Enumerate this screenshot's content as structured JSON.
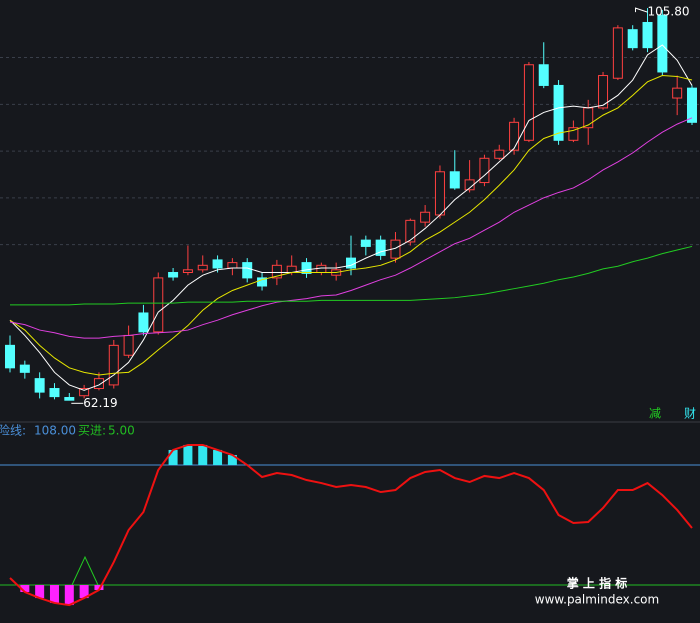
{
  "chart_data": [
    {
      "type": "candlestick",
      "candles": [
        [
          68.3,
          69.4,
          65.3,
          65.8
        ],
        [
          66.1,
          66.6,
          64.6,
          65.3
        ],
        [
          64.6,
          65.3,
          62.4,
          63.1
        ],
        [
          63.5,
          64.1,
          62.3,
          62.6
        ],
        [
          62.5,
          63.0,
          62.19,
          62.2
        ],
        [
          62.7,
          63.9,
          62.4,
          63.5
        ],
        [
          63.5,
          65.3,
          63.3,
          64.6
        ],
        [
          63.9,
          68.9,
          63.5,
          68.3
        ],
        [
          67.2,
          70.5,
          66.9,
          69.4
        ],
        [
          71.9,
          72.8,
          69.4,
          69.8
        ],
        [
          69.8,
          76.4,
          69.5,
          75.8
        ],
        [
          76.4,
          76.9,
          75.5,
          75.9
        ],
        [
          76.4,
          79.4,
          76.1,
          76.7
        ],
        [
          76.7,
          78.3,
          76.4,
          77.2
        ],
        [
          77.8,
          78.3,
          76.4,
          76.9
        ],
        [
          76.9,
          78.0,
          76.1,
          77.5
        ],
        [
          77.5,
          78.0,
          75.3,
          75.8
        ],
        [
          75.8,
          76.4,
          74.4,
          74.9
        ],
        [
          75.8,
          77.8,
          75.0,
          77.2
        ],
        [
          76.4,
          78.3,
          76.1,
          77.1
        ],
        [
          77.5,
          78.0,
          75.8,
          76.3
        ],
        [
          76.4,
          77.5,
          76.1,
          77.2
        ],
        [
          76.1,
          77.5,
          75.5,
          76.7
        ],
        [
          78.0,
          80.5,
          76.1,
          76.9
        ],
        [
          80.0,
          80.5,
          78.3,
          79.3
        ],
        [
          80.0,
          80.5,
          77.8,
          78.3
        ],
        [
          78.0,
          80.9,
          77.5,
          80.0
        ],
        [
          79.8,
          82.4,
          79.4,
          82.2
        ],
        [
          82.0,
          83.9,
          81.5,
          83.1
        ],
        [
          82.8,
          88.3,
          82.4,
          87.6
        ],
        [
          87.6,
          90.0,
          85.6,
          85.8
        ],
        [
          85.6,
          88.9,
          85.3,
          86.7
        ],
        [
          86.4,
          89.5,
          86.0,
          89.1
        ],
        [
          89.1,
          90.6,
          88.9,
          90.0
        ],
        [
          90.0,
          93.6,
          89.5,
          93.1
        ],
        [
          91.1,
          99.8,
          90.9,
          99.5
        ],
        [
          99.5,
          102.0,
          96.9,
          97.2
        ],
        [
          97.2,
          97.8,
          90.6,
          91.1
        ],
        [
          91.1,
          93.3,
          90.9,
          92.5
        ],
        [
          92.5,
          95.6,
          90.6,
          94.7
        ],
        [
          94.7,
          98.7,
          94.5,
          98.3
        ],
        [
          98.0,
          103.9,
          97.8,
          103.6
        ],
        [
          103.4,
          103.9,
          101.1,
          101.4
        ],
        [
          104.2,
          105.8,
          100.9,
          101.4
        ],
        [
          105.0,
          105.6,
          98.3,
          98.7
        ],
        [
          95.8,
          98.3,
          93.9,
          96.9
        ],
        [
          96.9,
          97.2,
          92.8,
          93.1
        ]
      ],
      "up_color": "#ff4040",
      "down_color": "#54ffff",
      "series": [
        {
          "color": "#ffffff",
          "values": [
            71.1,
            69.4,
            67.5,
            65.3,
            63.9,
            63.3,
            63.9,
            65.0,
            66.4,
            68.9,
            72.0,
            73.3,
            75.0,
            76.1,
            76.7,
            76.9,
            76.9,
            76.4,
            76.4,
            76.4,
            76.7,
            76.9,
            76.9,
            77.2,
            78.0,
            78.7,
            79.1,
            80.0,
            81.3,
            82.8,
            84.5,
            85.8,
            87.2,
            88.7,
            90.2,
            93.3,
            94.2,
            94.7,
            94.9,
            94.7,
            95.0,
            96.1,
            97.8,
            100.6,
            101.7,
            100.0,
            97.2
          ]
        },
        {
          "color": "#e6e600",
          "values": [
            71.1,
            70.0,
            68.3,
            66.9,
            65.8,
            65.3,
            65.0,
            65.2,
            65.3,
            66.4,
            67.8,
            69.1,
            70.5,
            72.2,
            73.5,
            74.4,
            75.0,
            75.6,
            76.0,
            76.4,
            76.4,
            76.4,
            76.4,
            76.7,
            76.9,
            77.2,
            77.8,
            78.7,
            80.0,
            80.9,
            82.0,
            83.1,
            84.5,
            86.1,
            87.8,
            90.0,
            91.3,
            91.9,
            92.2,
            92.8,
            93.9,
            94.7,
            96.1,
            97.6,
            98.3,
            98.2,
            97.8
          ]
        },
        {
          "color": "#e040e0",
          "values": [
            70.9,
            70.6,
            70.0,
            69.7,
            69.3,
            69.1,
            69.1,
            69.3,
            69.4,
            69.6,
            69.7,
            69.8,
            70.0,
            70.6,
            71.1,
            71.7,
            72.2,
            72.7,
            73.1,
            73.3,
            73.5,
            73.8,
            73.9,
            74.4,
            75.0,
            75.6,
            76.1,
            76.9,
            77.8,
            78.7,
            79.6,
            80.2,
            81.1,
            82.0,
            83.1,
            83.9,
            84.7,
            85.3,
            85.8,
            86.7,
            87.8,
            88.7,
            89.7,
            90.9,
            92.0,
            92.9,
            93.6
          ]
        },
        {
          "color": "#22cc22",
          "values": [
            72.8,
            72.8,
            72.8,
            72.8,
            72.8,
            72.9,
            72.9,
            72.9,
            73.0,
            73.0,
            73.0,
            73.0,
            73.1,
            73.1,
            73.1,
            73.1,
            73.2,
            73.2,
            73.2,
            73.2,
            73.2,
            73.3,
            73.3,
            73.3,
            73.3,
            73.3,
            73.3,
            73.3,
            73.4,
            73.5,
            73.6,
            73.8,
            74.0,
            74.3,
            74.6,
            74.9,
            75.2,
            75.6,
            75.9,
            76.3,
            76.8,
            77.1,
            77.6,
            78.0,
            78.5,
            78.9,
            79.3
          ]
        }
      ],
      "ylim": [
        60,
        106.7
      ],
      "yticks": [
        100.3,
        95.1,
        89.9,
        84.7,
        79.5
      ],
      "grid": true,
      "high_label": "105.80",
      "low_label": "62.19"
    },
    {
      "type": "line",
      "series": [
        {
          "color": "#ee1111",
          "values": [
            11.0,
            -1.0,
            -6.2,
            -10.4,
            -12.2,
            -6.2,
            0.7,
            24.7,
            52.2,
            67.7,
            103.7,
            120.9,
            125.2,
            125.2,
            120.9,
            116.6,
            108.0,
            97.7,
            101.1,
            99.4,
            95.1,
            92.5,
            89.1,
            90.8,
            89.1,
            84.8,
            86.5,
            96.8,
            102.0,
            103.7,
            96.8,
            93.4,
            98.6,
            96.8,
            101.1,
            96.8,
            86.5,
            65.1,
            58.2,
            59.1,
            71.1,
            86.5,
            86.5,
            92.5,
            82.2,
            69.4,
            53.9
          ]
        }
      ],
      "ylim": [
        -27.6,
        144.9
      ],
      "risk_line": {
        "name": "风险线:",
        "value": 108,
        "label": "108.00",
        "color": "#4a8fd8"
      },
      "buy_line": {
        "name": "买进:",
        "value": 5,
        "label": "5.00",
        "color": "#22bb22"
      },
      "above_color": "#33e6f0",
      "below_color": "#ff22ff"
    }
  ],
  "signals": [
    "减",
    "财"
  ],
  "watermark": {
    "title": "掌 上 指 标",
    "url": "www.palmindex.com"
  }
}
